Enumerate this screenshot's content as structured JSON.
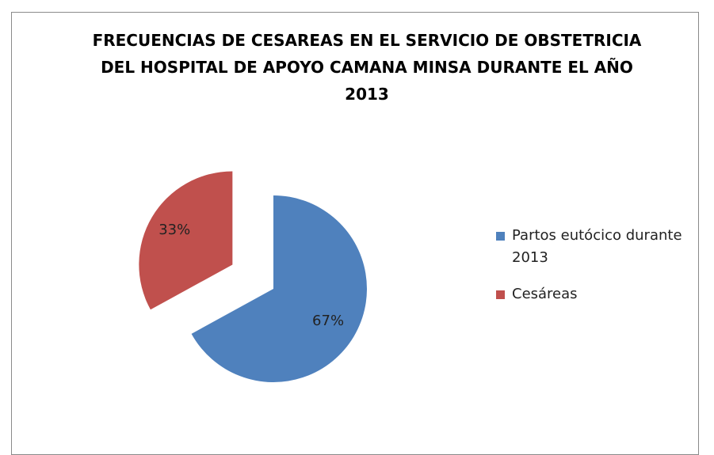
{
  "chart_data": {
    "type": "pie",
    "title": "FRECUENCIAS DE CESAREAS EN EL SERVICIO DE OBSTETRICIA DEL HOSPITAL DE APOYO CAMANA MINSA DURANTE EL AÑO 2013",
    "categories": [
      "Partos eutócico durante 2013",
      "Cesáreas"
    ],
    "values": [
      67,
      33
    ],
    "value_labels": [
      "67%",
      "33%"
    ],
    "colors": [
      "#4f81bd",
      "#c0504d"
    ],
    "legend": "right"
  }
}
